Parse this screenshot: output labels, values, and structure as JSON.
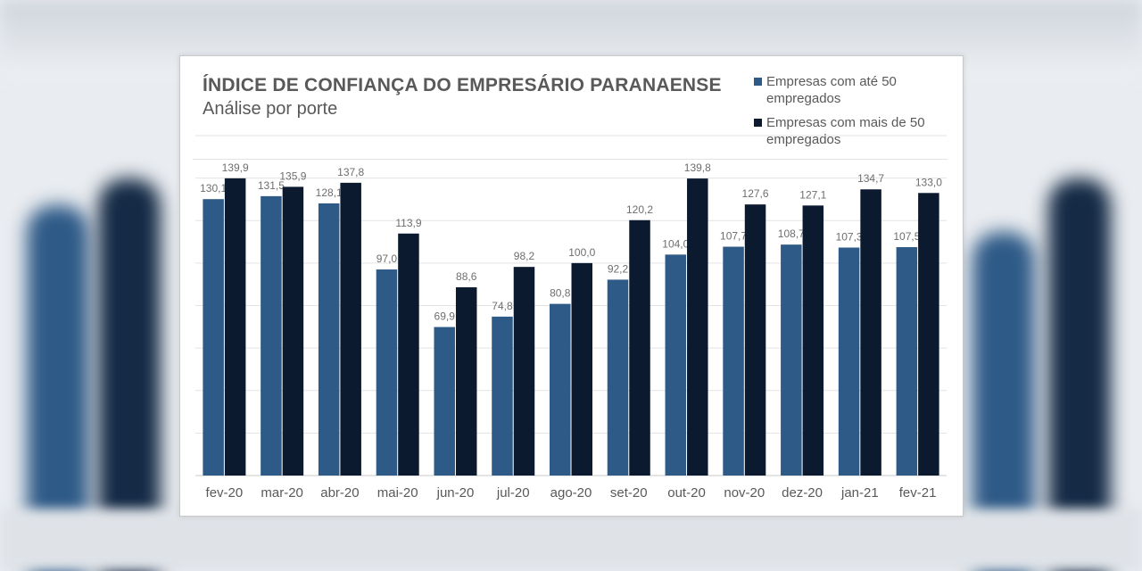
{
  "colors": {
    "series1": "#2e5a87",
    "series2": "#0b1a2e",
    "gridline": "#e3e3e3",
    "axis": "#c8c8c8",
    "text": "#595959",
    "label": "#6e6e6e"
  },
  "chart_data": {
    "type": "bar",
    "title": "ÍNDICE DE CONFIANÇA DO EMPRESÁRIO  PARANAENSE",
    "subtitle": "Análise por porte",
    "categories": [
      "fev-20",
      "mar-20",
      "abr-20",
      "mai-20",
      "jun-20",
      "jul-20",
      "ago-20",
      "set-20",
      "out-20",
      "nov-20",
      "dez-20",
      "jan-21",
      "fev-21"
    ],
    "series": [
      {
        "name": "Empresas com até 50 empregados",
        "values": [
          130.1,
          131.5,
          128.1,
          97.0,
          69.9,
          74.8,
          80.8,
          92.2,
          104.0,
          107.7,
          108.7,
          107.3,
          107.5
        ],
        "labels": [
          "130,1",
          "131,5",
          "128,1",
          "97,0",
          "69,9",
          "74,8",
          "80,8",
          "92,2",
          "104,0",
          "107,7",
          "108,7",
          "107,3",
          "107,5"
        ]
      },
      {
        "name": "Empresas com mais de 50 empregados",
        "values": [
          139.9,
          135.9,
          137.8,
          113.9,
          88.6,
          98.2,
          100.0,
          120.2,
          139.8,
          127.6,
          127.1,
          134.7,
          133.0
        ],
        "labels": [
          "139,9",
          "135,9",
          "137,8",
          "113,9",
          "88,6",
          "98,2",
          "100,0",
          "120,2",
          "139,8",
          "127,6",
          "127,1",
          "134,7",
          "133,0"
        ]
      }
    ],
    "ylim": [
      0,
      160
    ],
    "gridline_step": 20,
    "legend_position": "top-right",
    "xlabel": "",
    "ylabel": ""
  }
}
